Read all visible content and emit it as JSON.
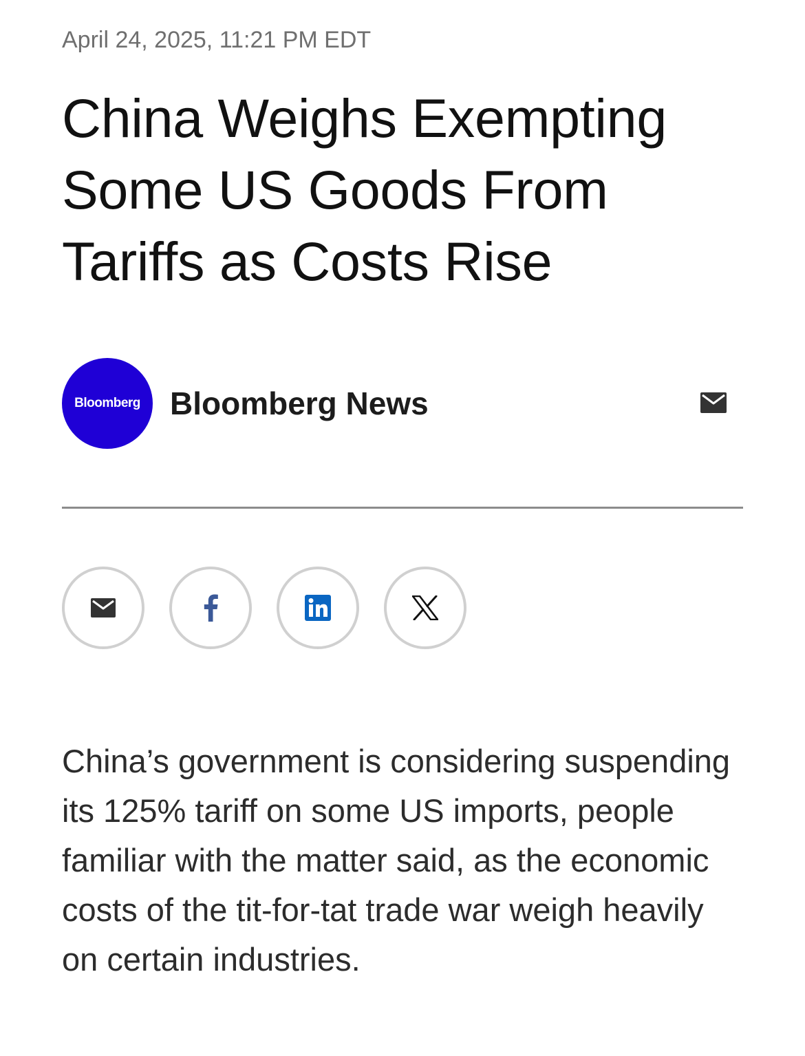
{
  "article": {
    "timestamp": "April 24, 2025, 11:21 PM EDT",
    "headline": "China Weighs Exempting Some US Goods From Tariffs as Costs Rise",
    "body": "China’s government is considering suspending its 125% tariff on some US imports, people familiar with the matter said, as the economic costs of the tit-for-tat trade war weigh heavily on certain industries."
  },
  "byline": {
    "avatar_text": "Bloomberg",
    "author": "Bloomberg News",
    "contact_icon": "envelope-icon"
  },
  "share": {
    "buttons": [
      {
        "icon": "envelope-icon",
        "color": "#333333"
      },
      {
        "icon": "facebook-icon",
        "color": "#3b5998"
      },
      {
        "icon": "linkedin-icon",
        "color": "#0a66c2"
      },
      {
        "icon": "x-icon",
        "color": "#111111"
      }
    ]
  },
  "colors": {
    "avatar_bg": "#1f00d6",
    "timestamp": "#6f6f6f",
    "divider": "#8c8c8c",
    "share_border": "#d0d0d0"
  }
}
